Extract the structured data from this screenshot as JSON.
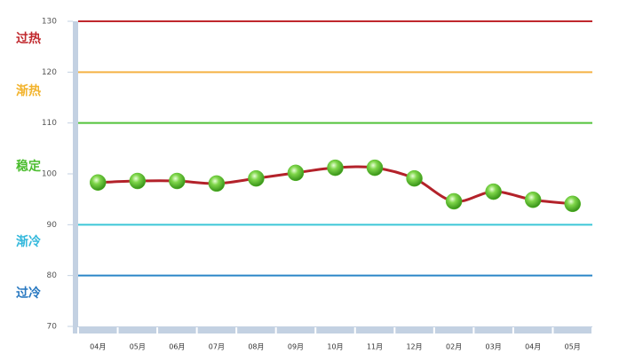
{
  "chart_data": {
    "type": "line",
    "categories": [
      "04月",
      "05月",
      "06月",
      "07月",
      "08月",
      "09月",
      "10月",
      "11月",
      "12月",
      "02月",
      "03月",
      "04月",
      "05月"
    ],
    "series": [
      {
        "color": "#b3222a",
        "marker_color": "#5cc02e",
        "values": [
          98.3,
          98.6,
          98.6,
          98.1,
          99.1,
          100.2,
          101.2,
          101.2,
          99.1,
          94.6,
          96.5,
          94.9,
          94.1
        ]
      }
    ],
    "ylim": [
      70,
      130
    ],
    "yticks": [
      70,
      80,
      90,
      100,
      110,
      120,
      130
    ],
    "reference_lines": [
      {
        "value": 130,
        "color": "#c0282d"
      },
      {
        "value": 120,
        "color": "#f5b244"
      },
      {
        "value": 110,
        "color": "#52c23a"
      },
      {
        "value": 90,
        "color": "#3cc6d8"
      },
      {
        "value": 80,
        "color": "#2a86c8"
      }
    ],
    "zones": [
      {
        "label": "过热",
        "color": "#c0282d"
      },
      {
        "label": "渐热",
        "color": "#f2b32c"
      },
      {
        "label": "稳定",
        "color": "#4bbd2e"
      },
      {
        "label": "渐冷",
        "color": "#33b8dc"
      },
      {
        "label": "过冷",
        "color": "#2677c0"
      }
    ]
  }
}
